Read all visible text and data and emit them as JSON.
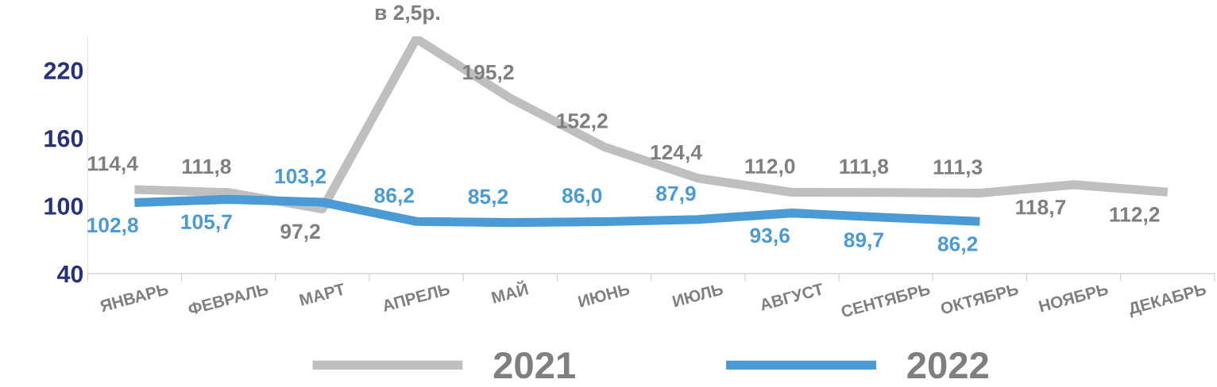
{
  "chart_data": {
    "type": "line",
    "categories": [
      "ЯНВАРЬ",
      "ФЕВРАЛЬ",
      "МАРТ",
      "АПРЕЛЬ",
      "МАЙ",
      "ИЮНЬ",
      "ИЮЛЬ",
      "АВГУСТ",
      "СЕНТЯБРЬ",
      "ОКТЯБРЬ",
      "НОЯБРЬ",
      "ДЕКАБРЬ"
    ],
    "series": [
      {
        "name": "2021",
        "color": "#bfbfbf",
        "values": [
          114.4,
          111.8,
          97.2,
          248,
          195.2,
          152.2,
          124.4,
          112.0,
          111.8,
          111.3,
          118.7,
          112.2
        ],
        "value_labels": [
          "114,4",
          "111,8",
          "97,2",
          null,
          "195,2",
          "152,2",
          "124,4",
          "112,0",
          "111,8",
          "111,3",
          "118,7",
          "112,2"
        ]
      },
      {
        "name": "2022",
        "color": "#4a9ad6",
        "values": [
          102.8,
          105.7,
          103.2,
          86.2,
          85.2,
          86.0,
          87.9,
          93.6,
          89.7,
          86.2,
          null,
          null
        ],
        "value_labels": [
          "102,8",
          "105,7",
          "103,2",
          "86,2",
          "85,2",
          "86,0",
          "87,9",
          "93,6",
          "89,7",
          "86,2",
          null,
          null
        ]
      }
    ],
    "annotations": [
      {
        "text": "в 2,5р.",
        "x": "АПРЕЛЬ",
        "y": 248
      }
    ],
    "ylim": [
      40,
      250
    ],
    "yticks": [
      40,
      100,
      160,
      220
    ],
    "grid": false,
    "legend": "bottom"
  }
}
